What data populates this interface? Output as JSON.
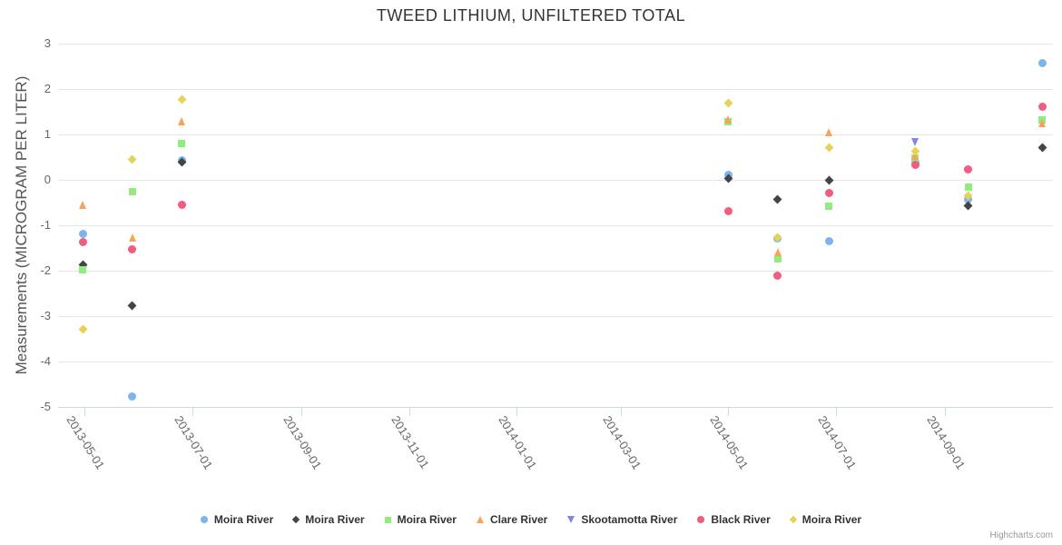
{
  "credits": {
    "label": "Highcharts.com"
  },
  "chart_data": {
    "type": "scatter",
    "title": "TWEED LITHIUM, UNFILTERED TOTAL",
    "xlabel": "",
    "ylabel": "Measurements (MICROGRAM PER LITER)",
    "ylim": [
      -5,
      3
    ],
    "yticks": [
      3,
      2,
      1,
      0,
      -1,
      -2,
      -3,
      -4,
      -5
    ],
    "xlim": [
      "2013-04-16",
      "2014-11-01"
    ],
    "xticks": [
      "2013-05-01",
      "2013-07-01",
      "2013-09-01",
      "2013-11-01",
      "2014-01-01",
      "2014-03-01",
      "2014-05-01",
      "2014-07-01",
      "2014-09-01"
    ],
    "grid": "horizontal",
    "legend_position": "bottom",
    "series": [
      {
        "name": "Moira River",
        "color": "#7cb5ec",
        "marker": "circle",
        "points": [
          [
            "2013-04-30",
            -1.18
          ],
          [
            "2013-05-28",
            -4.76
          ],
          [
            "2013-06-25",
            0.44
          ],
          [
            "2014-05-01",
            0.12
          ],
          [
            "2014-05-29",
            -1.28
          ],
          [
            "2014-06-27",
            -1.34
          ],
          [
            "2014-08-15",
            0.4
          ],
          [
            "2014-09-14",
            -0.42
          ],
          [
            "2014-10-26",
            2.58
          ]
        ]
      },
      {
        "name": "Moira River",
        "color": "#434348",
        "marker": "diamond",
        "points": [
          [
            "2013-04-30",
            -1.86
          ],
          [
            "2013-05-28",
            -2.76
          ],
          [
            "2013-06-25",
            0.4
          ],
          [
            "2014-05-01",
            0.04
          ],
          [
            "2014-05-29",
            -0.42
          ],
          [
            "2014-06-27",
            0.0
          ],
          [
            "2014-09-14",
            -0.56
          ],
          [
            "2014-10-26",
            0.72
          ]
        ]
      },
      {
        "name": "Moira River",
        "color": "#90ed7d",
        "marker": "square",
        "points": [
          [
            "2013-04-30",
            -1.98
          ],
          [
            "2013-05-28",
            -0.26
          ],
          [
            "2013-06-25",
            0.8
          ],
          [
            "2014-05-01",
            1.28
          ],
          [
            "2014-05-29",
            -1.74
          ],
          [
            "2014-06-27",
            -0.58
          ],
          [
            "2014-08-15",
            0.48
          ],
          [
            "2014-09-14",
            -0.16
          ],
          [
            "2014-10-26",
            1.32
          ]
        ]
      },
      {
        "name": "Clare River",
        "color": "#f7a35c",
        "marker": "triangle",
        "points": [
          [
            "2013-04-30",
            -0.54
          ],
          [
            "2013-05-28",
            -1.26
          ],
          [
            "2013-06-25",
            1.3
          ],
          [
            "2014-05-01",
            1.34
          ],
          [
            "2014-05-29",
            -1.58
          ],
          [
            "2014-06-27",
            1.06
          ],
          [
            "2014-08-15",
            0.54
          ],
          [
            "2014-10-26",
            1.26
          ]
        ]
      },
      {
        "name": "Skootamotta River",
        "color": "#8085e9",
        "marker": "triangle-down",
        "points": [
          [
            "2014-08-15",
            0.84
          ]
        ]
      },
      {
        "name": "Black River",
        "color": "#f15c80",
        "marker": "circle",
        "points": [
          [
            "2013-04-30",
            -1.36
          ],
          [
            "2013-05-28",
            -1.52
          ],
          [
            "2013-06-25",
            -0.54
          ],
          [
            "2014-05-01",
            -0.68
          ],
          [
            "2014-05-29",
            -2.1
          ],
          [
            "2014-06-27",
            -0.28
          ],
          [
            "2014-08-15",
            0.34
          ],
          [
            "2014-09-14",
            0.24
          ],
          [
            "2014-10-26",
            1.62
          ]
        ]
      },
      {
        "name": "Moira River",
        "color": "#e4d354",
        "marker": "diamond",
        "points": [
          [
            "2013-04-30",
            -3.28
          ],
          [
            "2013-05-28",
            0.46
          ],
          [
            "2013-06-25",
            1.78
          ],
          [
            "2014-05-01",
            1.7
          ],
          [
            "2014-05-29",
            -1.26
          ],
          [
            "2014-06-27",
            0.72
          ],
          [
            "2014-08-15",
            0.64
          ],
          [
            "2014-09-14",
            -0.34
          ]
        ]
      }
    ]
  }
}
